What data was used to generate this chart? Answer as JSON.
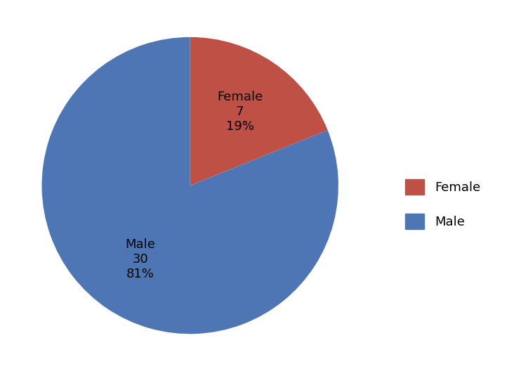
{
  "labels": [
    "Female",
    "Male"
  ],
  "values": [
    7,
    30
  ],
  "counts": [
    7,
    30
  ],
  "percentages": [
    "19%",
    "81%"
  ],
  "colors": [
    "#be5045",
    "#4e76b5"
  ],
  "legend_labels": [
    "Female",
    "Male"
  ],
  "title_fontsize": 20,
  "label_fontsize": 13,
  "legend_fontsize": 13,
  "startangle": 90,
  "background_color": "#ffffff"
}
